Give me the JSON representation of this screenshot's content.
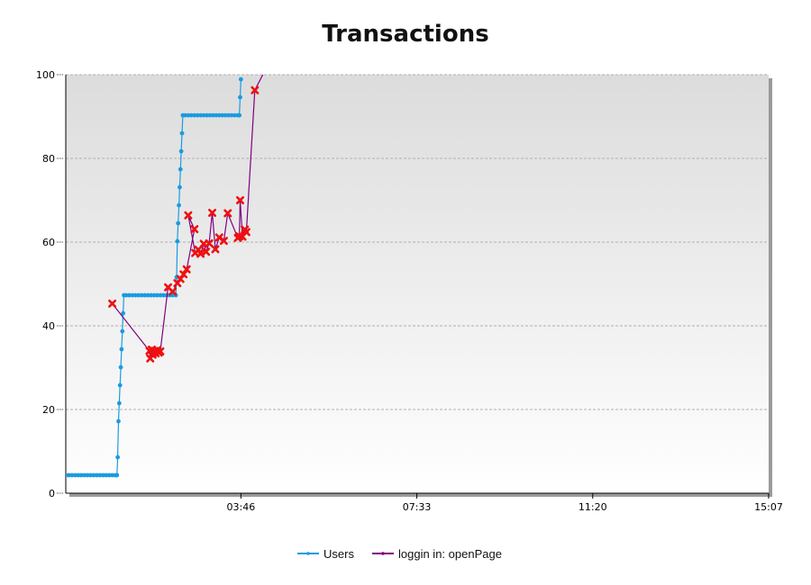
{
  "chart_data": {
    "type": "line",
    "title": "Transactions",
    "xlabel": "",
    "ylabel": "",
    "ylim": [
      0,
      100
    ],
    "xlim_seconds": [
      0,
      907
    ],
    "y_ticks": [
      0,
      20,
      40,
      60,
      80,
      100
    ],
    "x_ticks": [
      {
        "label": "03:46",
        "seconds": 226
      },
      {
        "label": "07:33",
        "seconds": 453
      },
      {
        "label": "11:20",
        "seconds": 680
      },
      {
        "label": "15:07",
        "seconds": 907
      }
    ],
    "grid": true,
    "legend_position": "bottom",
    "colors": {
      "users": "#1a9be0",
      "openPage_line": "#800080",
      "openPage_marker": "#ee1111",
      "grid": "#b0b0b0",
      "plot_bg_top": "#dedede",
      "plot_bg_bottom": "#ffffff"
    },
    "series": [
      {
        "name": "Users",
        "marker": "dot",
        "color": "#1a9be0",
        "points": [
          [
            0,
            4.3
          ],
          [
            4,
            4.3
          ],
          [
            8,
            4.3
          ],
          [
            12,
            4.3
          ],
          [
            16,
            4.3
          ],
          [
            20,
            4.3
          ],
          [
            24,
            4.3
          ],
          [
            28,
            4.3
          ],
          [
            32,
            4.3
          ],
          [
            36,
            4.3
          ],
          [
            40,
            4.3
          ],
          [
            44,
            4.3
          ],
          [
            48,
            4.3
          ],
          [
            52,
            4.3
          ],
          [
            56,
            4.3
          ],
          [
            60,
            4.3
          ],
          [
            64,
            4.3
          ],
          [
            66,
            4.3
          ],
          [
            67,
            8.6
          ],
          [
            68,
            17.2
          ],
          [
            69,
            21.5
          ],
          [
            70,
            25.8
          ],
          [
            71,
            30.1
          ],
          [
            72,
            34.4
          ],
          [
            73,
            38.7
          ],
          [
            74,
            43.0
          ],
          [
            75,
            47.3
          ],
          [
            78,
            47.3
          ],
          [
            82,
            47.3
          ],
          [
            86,
            47.3
          ],
          [
            90,
            47.3
          ],
          [
            94,
            47.3
          ],
          [
            98,
            47.3
          ],
          [
            102,
            47.3
          ],
          [
            106,
            47.3
          ],
          [
            110,
            47.3
          ],
          [
            114,
            47.3
          ],
          [
            118,
            47.3
          ],
          [
            122,
            47.3
          ],
          [
            126,
            47.3
          ],
          [
            130,
            47.3
          ],
          [
            134,
            47.3
          ],
          [
            138,
            47.3
          ],
          [
            142,
            47.3
          ],
          [
            143,
            51.6
          ],
          [
            144,
            60.2
          ],
          [
            145,
            64.5
          ],
          [
            146,
            68.8
          ],
          [
            147,
            73.1
          ],
          [
            148,
            77.4
          ],
          [
            149,
            81.7
          ],
          [
            150,
            86.0
          ],
          [
            151,
            90.3
          ],
          [
            154,
            90.3
          ],
          [
            158,
            90.3
          ],
          [
            162,
            90.3
          ],
          [
            166,
            90.3
          ],
          [
            170,
            90.3
          ],
          [
            174,
            90.3
          ],
          [
            178,
            90.3
          ],
          [
            182,
            90.3
          ],
          [
            186,
            90.3
          ],
          [
            190,
            90.3
          ],
          [
            194,
            90.3
          ],
          [
            198,
            90.3
          ],
          [
            202,
            90.3
          ],
          [
            206,
            90.3
          ],
          [
            210,
            90.3
          ],
          [
            214,
            90.3
          ],
          [
            218,
            90.3
          ],
          [
            222,
            90.3
          ],
          [
            224,
            90.3
          ],
          [
            225,
            94.6
          ],
          [
            226,
            98.9
          ]
        ]
      },
      {
        "name": "loggin in: openPage",
        "marker": "x",
        "color": "#800080",
        "marker_color": "#ee1111",
        "points": [
          [
            60,
            45.3
          ],
          [
            108,
            34.0
          ],
          [
            109,
            32.2
          ],
          [
            111,
            34.3
          ],
          [
            112,
            33.1
          ],
          [
            114,
            34.0
          ],
          [
            116,
            33.4
          ],
          [
            118,
            34.2
          ],
          [
            120,
            33.6
          ],
          [
            122,
            33.9
          ],
          [
            132,
            49.2
          ],
          [
            138,
            48.2
          ],
          [
            144,
            50.2
          ],
          [
            148,
            51.2
          ],
          [
            152,
            52.3
          ],
          [
            156,
            53.5
          ],
          [
            166,
            63.1
          ],
          [
            158,
            66.4
          ],
          [
            167,
            57.4
          ],
          [
            171,
            58.2
          ],
          [
            174,
            57.2
          ],
          [
            178,
            59.6
          ],
          [
            181,
            57.7
          ],
          [
            185,
            59.7
          ],
          [
            189,
            67.0
          ],
          [
            193,
            58.3
          ],
          [
            198,
            61.1
          ],
          [
            204,
            60.3
          ],
          [
            209,
            66.9
          ],
          [
            222,
            61.0
          ],
          [
            224,
            61.4
          ],
          [
            225,
            70.0
          ],
          [
            228,
            61.3
          ],
          [
            231,
            63.0
          ],
          [
            233,
            62.4
          ],
          [
            244,
            96.3
          ],
          [
            268,
            105.0
          ]
        ]
      }
    ]
  },
  "legend": [
    {
      "label": "Users"
    },
    {
      "label": "loggin in: openPage"
    }
  ]
}
